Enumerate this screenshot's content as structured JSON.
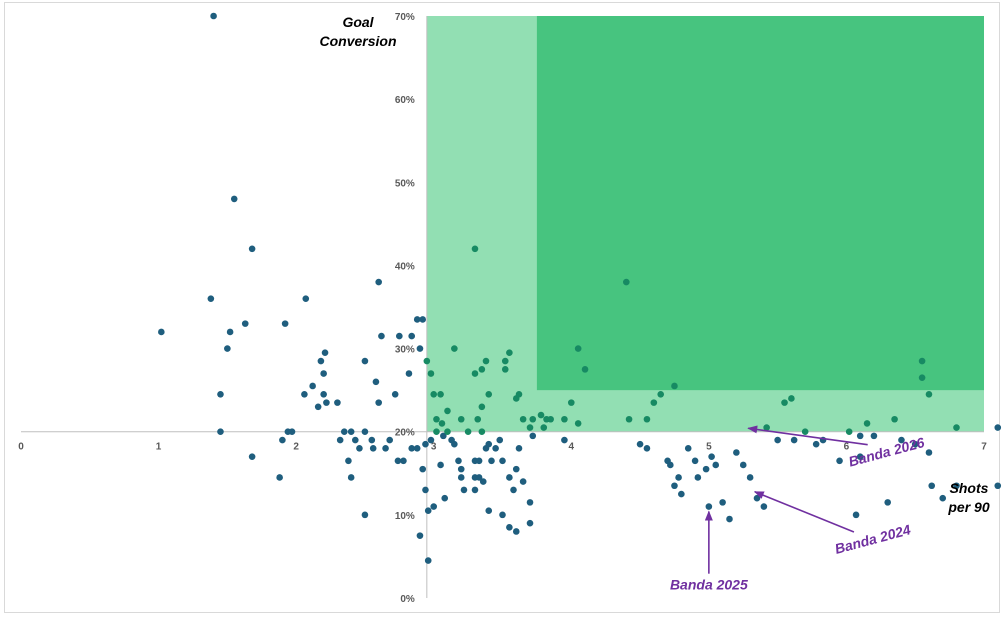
{
  "chart_data": {
    "type": "scatter",
    "title": "",
    "xlabel": [
      "Shots",
      "per 90"
    ],
    "ylabel": [
      "Goal",
      "Conversion"
    ],
    "xlim": [
      0,
      7
    ],
    "ylim": [
      0,
      0.7
    ],
    "x_ticks": [
      0,
      1,
      2,
      3,
      4,
      5,
      6,
      7
    ],
    "x_tick_labels": [
      "0",
      "1",
      "2",
      "3",
      "4",
      "5",
      "6",
      "7"
    ],
    "y_ticks": [
      0,
      0.1,
      0.2,
      0.3,
      0.4,
      0.5,
      0.6,
      0.7
    ],
    "y_tick_labels": [
      "0%",
      "10%",
      "20%",
      "30%",
      "40%",
      "50%",
      "60%",
      "70%"
    ],
    "x_axis_crosses_y_at": 0.2,
    "y_axis_crosses_x_at": 2.95,
    "grid": false,
    "colors": {
      "point": "#1f5e7e",
      "point_in_zone": "#178a63",
      "zone_light": "#92dfb3",
      "zone_dark": "#47c47f",
      "annotation": "#7030a0"
    },
    "zones": [
      {
        "x": [
          2.95,
          7
        ],
        "y": [
          0.2,
          0.7
        ],
        "color": "zone_light"
      },
      {
        "x": [
          3.75,
          7
        ],
        "y": [
          0.25,
          0.7
        ],
        "color": "zone_dark"
      }
    ],
    "points": [
      [
        1.4,
        0.7
      ],
      [
        1.55,
        0.48
      ],
      [
        1.68,
        0.42
      ],
      [
        1.38,
        0.36
      ],
      [
        2.07,
        0.36
      ],
      [
        1.02,
        0.32
      ],
      [
        1.52,
        0.32
      ],
      [
        1.63,
        0.33
      ],
      [
        1.5,
        0.3
      ],
      [
        1.92,
        0.33
      ],
      [
        1.45,
        0.245
      ],
      [
        1.45,
        0.2
      ],
      [
        1.68,
        0.17
      ],
      [
        1.9,
        0.19
      ],
      [
        1.94,
        0.2
      ],
      [
        1.97,
        0.2
      ],
      [
        1.88,
        0.145
      ],
      [
        2.06,
        0.245
      ],
      [
        2.12,
        0.255
      ],
      [
        2.16,
        0.23
      ],
      [
        2.18,
        0.285
      ],
      [
        2.2,
        0.27
      ],
      [
        2.21,
        0.295
      ],
      [
        2.22,
        0.235
      ],
      [
        2.2,
        0.245
      ],
      [
        2.3,
        0.235
      ],
      [
        2.32,
        0.19
      ],
      [
        2.35,
        0.2
      ],
      [
        2.4,
        0.2
      ],
      [
        2.38,
        0.165
      ],
      [
        2.4,
        0.145
      ],
      [
        2.43,
        0.19
      ],
      [
        2.46,
        0.18
      ],
      [
        2.5,
        0.1
      ],
      [
        2.5,
        0.2
      ],
      [
        2.5,
        0.285
      ],
      [
        2.55,
        0.19
      ],
      [
        2.56,
        0.18
      ],
      [
        2.58,
        0.26
      ],
      [
        2.6,
        0.38
      ],
      [
        2.6,
        0.235
      ],
      [
        2.62,
        0.315
      ],
      [
        2.65,
        0.18
      ],
      [
        2.68,
        0.19
      ],
      [
        2.72,
        0.245
      ],
      [
        2.74,
        0.165
      ],
      [
        2.78,
        0.165
      ],
      [
        2.75,
        0.315
      ],
      [
        2.82,
        0.27
      ],
      [
        2.84,
        0.18
      ],
      [
        2.84,
        0.315
      ],
      [
        2.88,
        0.335
      ],
      [
        2.92,
        0.335
      ],
      [
        2.9,
        0.3
      ],
      [
        2.95,
        0.285
      ],
      [
        2.88,
        0.18
      ],
      [
        2.92,
        0.155
      ],
      [
        2.94,
        0.185
      ],
      [
        2.94,
        0.13
      ],
      [
        2.98,
        0.27
      ],
      [
        3.0,
        0.245
      ],
      [
        3.02,
        0.215
      ],
      [
        3.02,
        0.2
      ],
      [
        3.0,
        0.11
      ],
      [
        3.05,
        0.16
      ],
      [
        3.08,
        0.12
      ],
      [
        2.9,
        0.075
      ],
      [
        2.96,
        0.045
      ],
      [
        2.96,
        0.105
      ],
      [
        2.98,
        0.19
      ],
      [
        3.05,
        0.245
      ],
      [
        3.1,
        0.225
      ],
      [
        3.06,
        0.21
      ],
      [
        3.07,
        0.195
      ],
      [
        3.1,
        0.2
      ],
      [
        3.13,
        0.19
      ],
      [
        3.15,
        0.185
      ],
      [
        3.18,
        0.165
      ],
      [
        3.2,
        0.155
      ],
      [
        3.2,
        0.145
      ],
      [
        3.22,
        0.13
      ],
      [
        3.25,
        0.2
      ],
      [
        3.3,
        0.13
      ],
      [
        3.3,
        0.145
      ],
      [
        3.33,
        0.165
      ],
      [
        3.36,
        0.14
      ],
      [
        3.32,
        0.215
      ],
      [
        3.35,
        0.2
      ],
      [
        3.38,
        0.18
      ],
      [
        3.4,
        0.185
      ],
      [
        3.3,
        0.165
      ],
      [
        3.33,
        0.145
      ],
      [
        3.42,
        0.165
      ],
      [
        3.45,
        0.18
      ],
      [
        3.48,
        0.19
      ],
      [
        3.5,
        0.165
      ],
      [
        3.55,
        0.145
      ],
      [
        3.58,
        0.13
      ],
      [
        3.5,
        0.1
      ],
      [
        3.55,
        0.085
      ],
      [
        3.62,
        0.18
      ],
      [
        3.6,
        0.155
      ],
      [
        3.65,
        0.14
      ],
      [
        3.7,
        0.115
      ],
      [
        3.4,
        0.105
      ],
      [
        3.6,
        0.08
      ],
      [
        3.7,
        0.09
      ],
      [
        3.52,
        0.275
      ],
      [
        3.55,
        0.295
      ],
      [
        3.15,
        0.3
      ],
      [
        3.2,
        0.215
      ],
      [
        3.3,
        0.42
      ],
      [
        3.35,
        0.23
      ],
      [
        3.4,
        0.245
      ],
      [
        3.52,
        0.285
      ],
      [
        3.6,
        0.24
      ],
      [
        3.65,
        0.215
      ],
      [
        3.7,
        0.205
      ],
      [
        3.72,
        0.195
      ],
      [
        3.78,
        0.22
      ],
      [
        3.8,
        0.205
      ],
      [
        3.82,
        0.215
      ],
      [
        3.95,
        0.19
      ],
      [
        3.95,
        0.215
      ],
      [
        4.05,
        0.21
      ],
      [
        4.0,
        0.235
      ],
      [
        3.72,
        0.215
      ],
      [
        3.62,
        0.245
      ],
      [
        3.3,
        0.27
      ],
      [
        3.35,
        0.275
      ],
      [
        3.38,
        0.285
      ],
      [
        3.85,
        0.215
      ],
      [
        4.05,
        0.3
      ],
      [
        4.1,
        0.275
      ],
      [
        4.42,
        0.215
      ],
      [
        4.5,
        0.185
      ],
      [
        4.55,
        0.215
      ],
      [
        4.6,
        0.235
      ],
      [
        4.65,
        0.245
      ],
      [
        4.55,
        0.18
      ],
      [
        4.7,
        0.165
      ],
      [
        4.72,
        0.16
      ],
      [
        4.78,
        0.145
      ],
      [
        4.75,
        0.135
      ],
      [
        4.8,
        0.125
      ],
      [
        4.85,
        0.18
      ],
      [
        4.9,
        0.165
      ],
      [
        4.92,
        0.145
      ],
      [
        4.98,
        0.155
      ],
      [
        5.02,
        0.17
      ],
      [
        5.05,
        0.16
      ],
      [
        5.0,
        0.11
      ],
      [
        5.1,
        0.115
      ],
      [
        5.15,
        0.095
      ],
      [
        5.2,
        0.175
      ],
      [
        5.25,
        0.16
      ],
      [
        5.3,
        0.145
      ],
      [
        5.35,
        0.12
      ],
      [
        5.4,
        0.11
      ],
      [
        5.42,
        0.205
      ],
      [
        5.5,
        0.19
      ],
      [
        4.4,
        0.38
      ],
      [
        4.75,
        0.255
      ],
      [
        5.55,
        0.235
      ],
      [
        5.6,
        0.24
      ],
      [
        5.62,
        0.19
      ],
      [
        5.7,
        0.2
      ],
      [
        5.78,
        0.185
      ],
      [
        5.83,
        0.19
      ],
      [
        5.95,
        0.165
      ],
      [
        6.02,
        0.2
      ],
      [
        6.07,
        0.1
      ],
      [
        6.1,
        0.195
      ],
      [
        6.15,
        0.21
      ],
      [
        6.2,
        0.195
      ],
      [
        6.35,
        0.215
      ],
      [
        6.4,
        0.19
      ],
      [
        6.5,
        0.185
      ],
      [
        6.55,
        0.285
      ],
      [
        6.55,
        0.265
      ],
      [
        6.6,
        0.245
      ],
      [
        6.6,
        0.175
      ],
      [
        6.8,
        0.205
      ],
      [
        6.8,
        0.135
      ],
      [
        7.1,
        0.205
      ],
      [
        7.1,
        0.135
      ],
      [
        7.38,
        0.125
      ],
      [
        6.3,
        0.115
      ],
      [
        6.62,
        0.135
      ],
      [
        6.7,
        0.12
      ],
      [
        6.1,
        0.17
      ]
    ],
    "highlighted": [
      {
        "label": "Banda 2026",
        "x": 5.25,
        "y": 0.205,
        "label_x": 6.3,
        "label_y": 0.17,
        "rotate": -15
      },
      {
        "label": "Banda 2024",
        "x": 5.3,
        "y": 0.13,
        "label_x": 6.2,
        "label_y": 0.065,
        "rotate": -15
      },
      {
        "label": "Banda 2025",
        "x": 5.0,
        "y": 0.11,
        "label_x": 5.0,
        "label_y": 0.01,
        "rotate": 0
      }
    ]
  }
}
